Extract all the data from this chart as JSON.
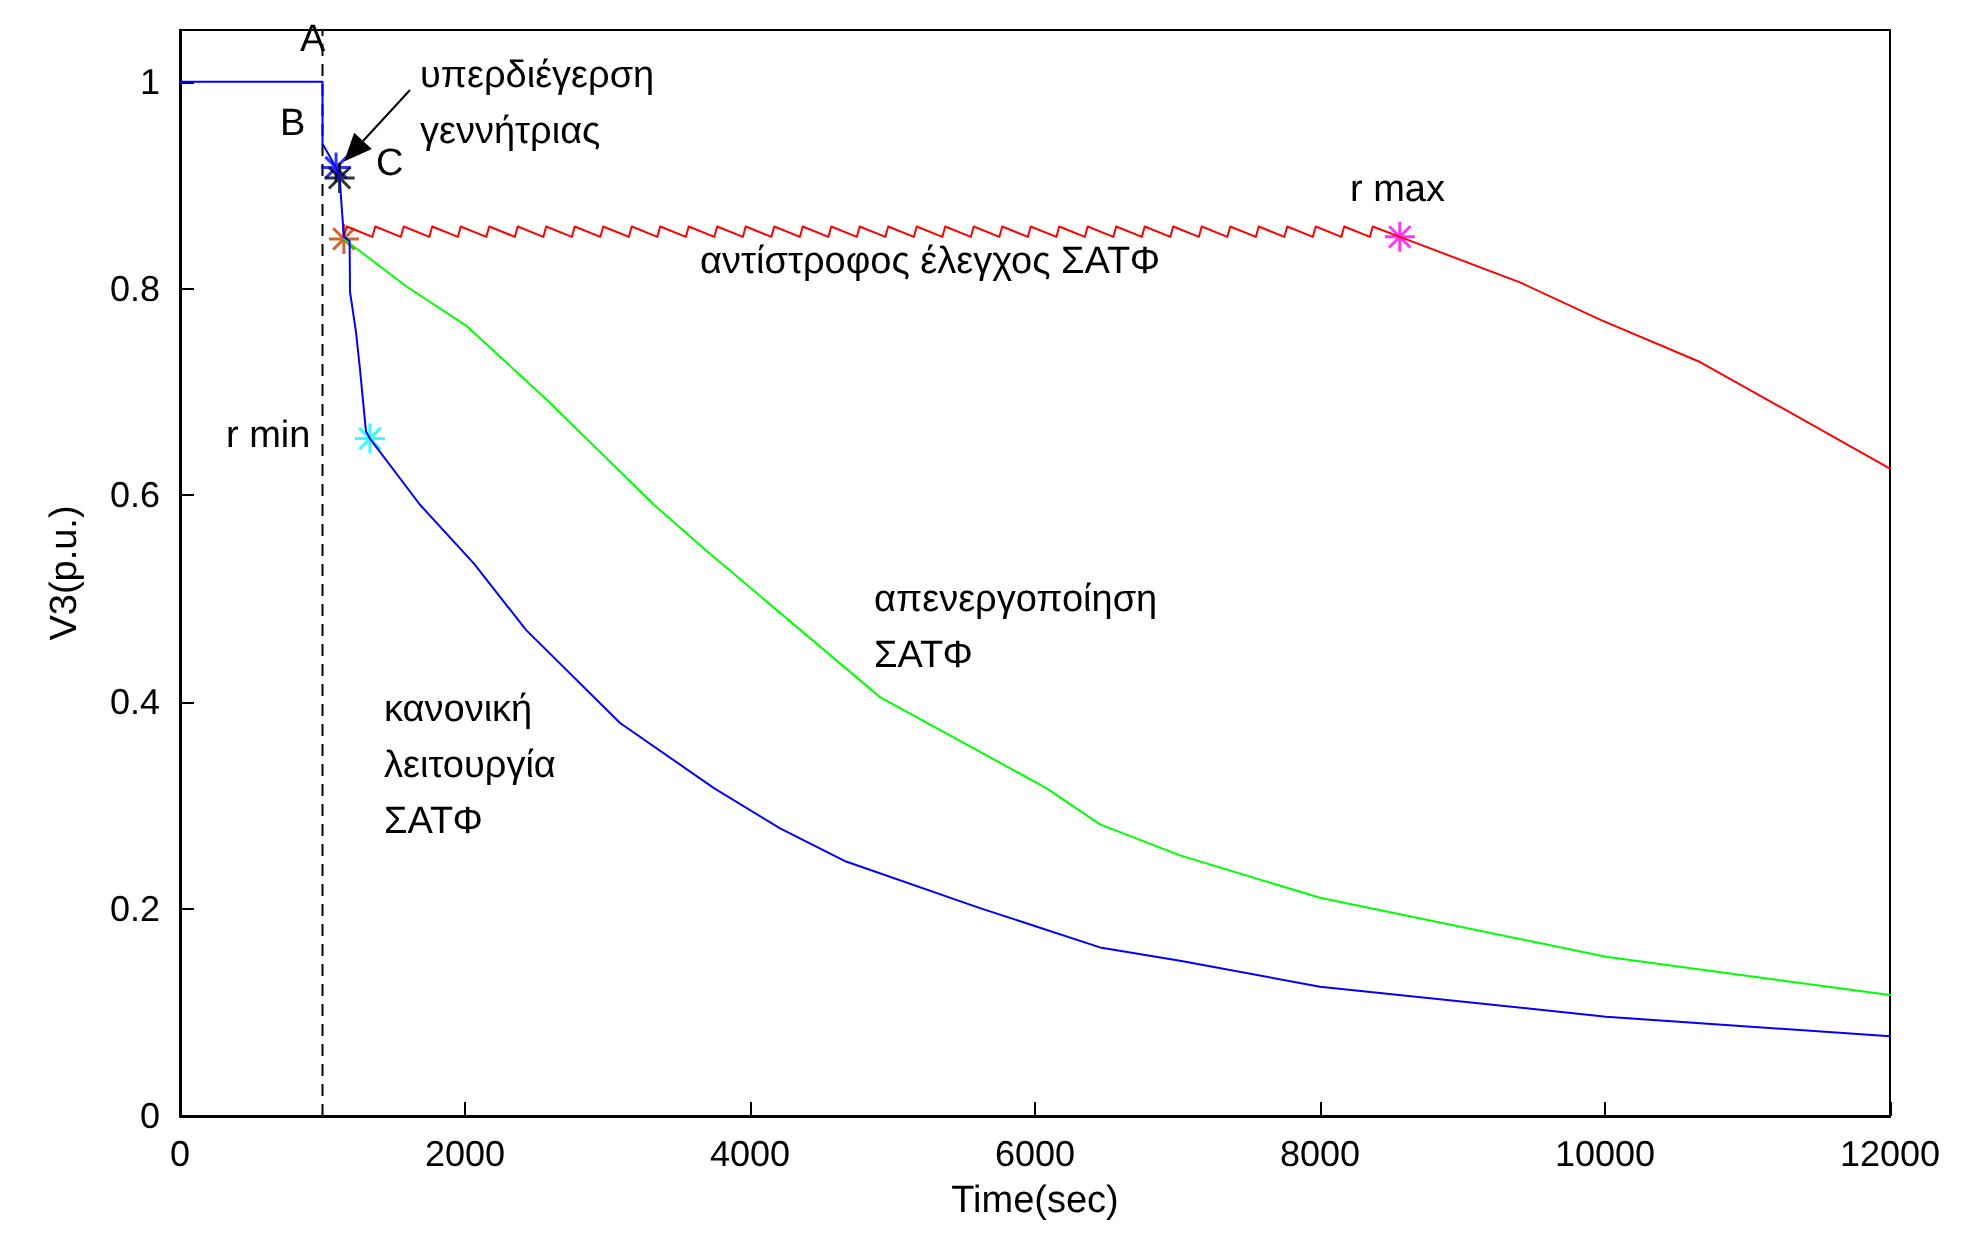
{
  "chart_data": {
    "type": "line",
    "xlabel": "Time(sec)",
    "ylabel": "V3(p.u.)",
    "xlim": [
      0,
      12000
    ],
    "xticks": [
      0,
      2000,
      4000,
      6000,
      8000,
      10000,
      12000
    ],
    "ylim": [
      0,
      1.05
    ],
    "yticks": [
      0,
      0.2,
      0.4,
      0.6,
      0.8,
      1
    ],
    "series": [
      {
        "color": "#ff0000",
        "line_style": "solid",
        "x": [
          1150,
          1170,
          1350,
          1370,
          1550,
          1570,
          1750,
          1770,
          1950,
          1970,
          2150,
          2170,
          2350,
          2370,
          2550,
          2570,
          2750,
          2770,
          2950,
          2970,
          3150,
          3170,
          3350,
          3370,
          3550,
          3570,
          3750,
          3770,
          3950,
          3970,
          4150,
          4170,
          4350,
          4370,
          4550,
          4570,
          4750,
          4770,
          4950,
          4970,
          5150,
          5170,
          5350,
          5370,
          5550,
          5570,
          5750,
          5770,
          5950,
          5970,
          6150,
          6170,
          6350,
          6370,
          6550,
          6570,
          6750,
          6770,
          6950,
          6970,
          7150,
          7170,
          7350,
          7370,
          7550,
          7570,
          7750,
          7770,
          7950,
          7970,
          8150,
          8170,
          8350,
          8370,
          8560,
          9403,
          9965,
          10667,
          12000
        ],
        "values": [
          0.85,
          0.86,
          0.85,
          0.86,
          0.85,
          0.86,
          0.85,
          0.86,
          0.85,
          0.86,
          0.85,
          0.86,
          0.85,
          0.86,
          0.85,
          0.86,
          0.85,
          0.86,
          0.85,
          0.86,
          0.85,
          0.86,
          0.85,
          0.86,
          0.85,
          0.86,
          0.85,
          0.86,
          0.85,
          0.86,
          0.85,
          0.86,
          0.85,
          0.86,
          0.85,
          0.86,
          0.85,
          0.86,
          0.85,
          0.86,
          0.85,
          0.86,
          0.85,
          0.86,
          0.85,
          0.86,
          0.85,
          0.86,
          0.85,
          0.86,
          0.85,
          0.86,
          0.85,
          0.86,
          0.85,
          0.86,
          0.85,
          0.86,
          0.85,
          0.86,
          0.85,
          0.86,
          0.85,
          0.86,
          0.85,
          0.86,
          0.85,
          0.86,
          0.85,
          0.86,
          0.85,
          0.86,
          0.85,
          0.86,
          0.85,
          0.806,
          0.77,
          0.729,
          0.626
        ]
      },
      {
        "color": "#00ff00",
        "line_style": "solid",
        "x": [
          1150,
          1590,
          2010,
          2570,
          3326,
          3690,
          4912,
          6080,
          6456,
          7018,
          8000,
          10007,
          12000
        ],
        "values": [
          0.848,
          0.802,
          0.764,
          0.693,
          0.591,
          0.547,
          0.405,
          0.317,
          0.282,
          0.252,
          0.211,
          0.154,
          0.117
        ]
      },
      {
        "color": "#0000ff",
        "line_style": "solid",
        "x": [
          0,
          1000,
          1000,
          1095,
          1120,
          1150,
          1190,
          1193,
          1235,
          1263,
          1305,
          1333,
          1684,
          2063,
          2428,
          3088,
          3747,
          4211,
          4674,
          5614,
          6456,
          7018,
          8000,
          10007,
          12000
        ],
        "values": [
          1.0,
          1.0,
          0.94,
          0.917,
          0.907,
          0.85,
          0.846,
          0.797,
          0.758,
          0.722,
          0.662,
          0.655,
          0.591,
          0.534,
          0.47,
          0.38,
          0.317,
          0.278,
          0.246,
          0.201,
          0.163,
          0.15,
          0.125,
          0.096,
          0.077
        ]
      },
      {
        "type": "scatter",
        "color": "#0000ff",
        "marker": "star",
        "x": [
          1095
        ],
        "values": [
          0.917
        ]
      },
      {
        "type": "scatter",
        "color": "#000000",
        "marker": "star",
        "x": [
          1120
        ],
        "values": [
          0.907
        ]
      },
      {
        "type": "scatter",
        "color": "#c04000",
        "marker": "star",
        "x": [
          1150
        ],
        "values": [
          0.848
        ]
      },
      {
        "type": "scatter",
        "color": "#00ffff",
        "marker": "star",
        "x": [
          1333
        ],
        "values": [
          0.655
        ]
      },
      {
        "type": "scatter",
        "color": "#ff00ff",
        "marker": "star",
        "x": [
          8560
        ],
        "values": [
          0.85
        ]
      }
    ],
    "ref_lines": [
      {
        "axis": "x",
        "value": 1000,
        "line_style": "dashed",
        "color": "#000000"
      }
    ],
    "annotations": [
      "υπερδιέγερση\nγεννήτριας",
      "A",
      "B",
      "C",
      "r min",
      "r max",
      "αντίστροφος έλεγχος ΣΑΤΦ",
      "απενεργοποίηση\nΣΑΤΦ",
      "κανονική\nλειτουργία\nΣΑΤΦ"
    ]
  }
}
